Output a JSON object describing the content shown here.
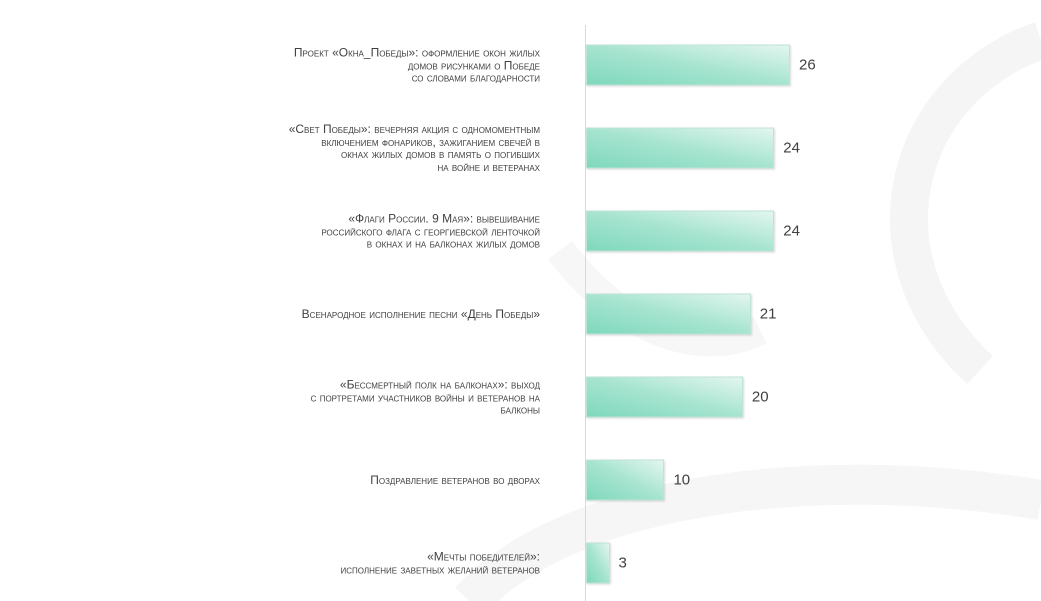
{
  "chart_data": {
    "type": "bar",
    "orientation": "horizontal",
    "categories": [
      [
        "Проект «Окна_Победы»: оформление окон жилых",
        "домов рисунками о Победе",
        "со словами благодарности"
      ],
      [
        "«Свет Победы»: вечерняя акция с одномоментным",
        "включением фонариков, зажиганием свечей в",
        "окнах жилых домов в память о погибших",
        "на войне и ветеранах"
      ],
      [
        "«Флаги России. 9 Мая»: вывешивание",
        "российского флага с георгиевской ленточкой",
        "в окнах и на балконах жилых домов"
      ],
      [
        "Всенародное исполнение песни «День Победы»"
      ],
      [
        "«Бессмертный полк на балконах»: выход",
        "с портретами участников войны и ветеранов на",
        "балконы"
      ],
      [
        "Поздравление ветеранов во дворах"
      ],
      [
        "«Мечты победителей»:",
        "исполнение заветных желаний ветеранов"
      ]
    ],
    "values": [
      26,
      24,
      24,
      21,
      20,
      10,
      3
    ],
    "xlim": [
      0,
      26
    ],
    "grid": false,
    "data_labels": true,
    "colors": {
      "bar": "#7fd8bc",
      "bar_light": "#e3f6ef",
      "text": "#404040"
    }
  }
}
